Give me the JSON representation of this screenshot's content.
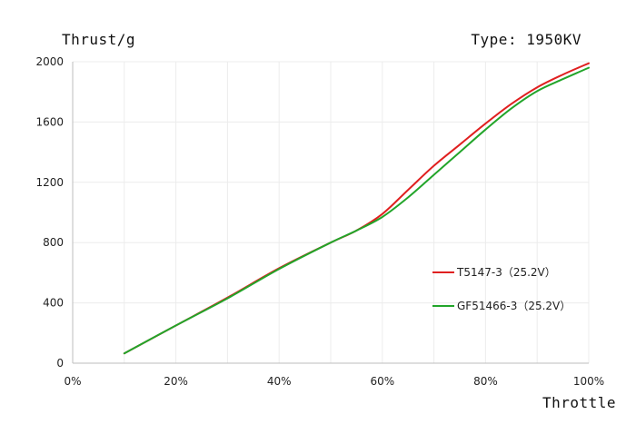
{
  "chart_data": {
    "type": "line",
    "ylabel": "Thrust/g",
    "xlabel": "Throttle",
    "annotation": "Type: 1950KV",
    "xlim": [
      0,
      100
    ],
    "ylim": [
      0,
      2000
    ],
    "x_ticks": [
      "0%",
      "20%",
      "40%",
      "60%",
      "80%",
      "100%"
    ],
    "y_ticks": [
      "0",
      "400",
      "800",
      "1200",
      "1600",
      "2000"
    ],
    "grid": "vertical+horizontal light",
    "legend_position": "right",
    "series": [
      {
        "name": "T5147-3（25.2V）",
        "color": "#e02020",
        "x": [
          10,
          20,
          30,
          40,
          50,
          55,
          60,
          65,
          70,
          75,
          80,
          85,
          90,
          95,
          100
        ],
        "y": [
          65,
          250,
          435,
          630,
          800,
          880,
          990,
          1150,
          1310,
          1450,
          1590,
          1720,
          1830,
          1915,
          1990
        ]
      },
      {
        "name": "GF51466-3（25.2V）",
        "color": "#22a52a",
        "x": [
          10,
          20,
          30,
          40,
          50,
          55,
          60,
          65,
          70,
          75,
          80,
          85,
          90,
          95,
          100
        ],
        "y": [
          65,
          250,
          430,
          625,
          800,
          880,
          970,
          1100,
          1250,
          1400,
          1550,
          1690,
          1805,
          1885,
          1960
        ]
      }
    ]
  }
}
